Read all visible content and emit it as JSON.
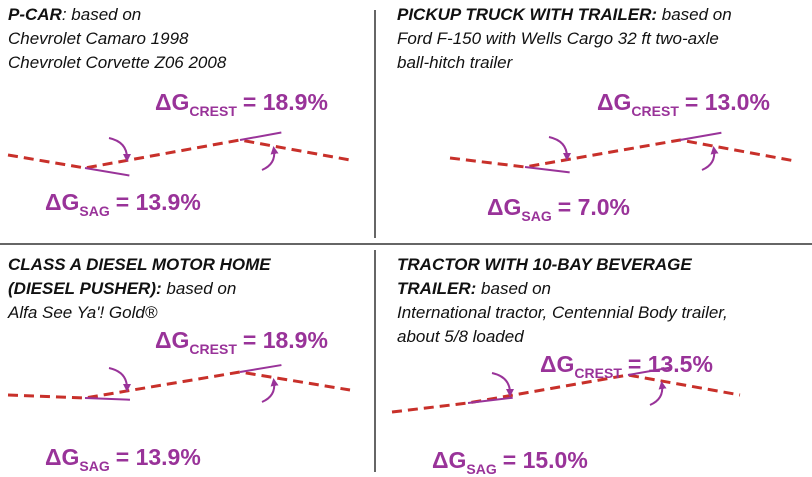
{
  "panels": [
    {
      "title": [
        "P-CAR"
      ],
      "title_suffix": ": based on",
      "lines": [
        "Chevrolet Camaro 1998",
        "Chevrolet Corvette Z06 2008"
      ],
      "crest": {
        "symbol": "ΔG",
        "subscript": "CREST",
        "value": "= 18.9%"
      },
      "sag": {
        "symbol": "ΔG",
        "subscript": "SAG",
        "value": "= 13.9%"
      }
    },
    {
      "title": [
        "PICKUP TRUCK WITH TRAILER:"
      ],
      "title_suffix": " based on",
      "lines": [
        "Ford F-150 with Wells Cargo 32 ft two-axle",
        "ball-hitch trailer"
      ],
      "crest": {
        "symbol": "ΔG",
        "subscript": "CREST",
        "value": "= 13.0%"
      },
      "sag": {
        "symbol": "ΔG",
        "subscript": "SAG",
        "value": "= 7.0%"
      }
    },
    {
      "title": [
        "CLASS A DIESEL MOTOR HOME",
        "(DIESEL PUSHER):"
      ],
      "title_suffix": " based on",
      "lines": [
        "Alfa See Ya'! Gold®"
      ],
      "crest": {
        "symbol": "ΔG",
        "subscript": "CREST",
        "value": "= 18.9%"
      },
      "sag": {
        "symbol": "ΔG",
        "subscript": "SAG",
        "value": "= 13.9%"
      }
    },
    {
      "title": [
        "TRACTOR WITH 10-BAY BEVERAGE",
        "TRAILER:"
      ],
      "title_suffix": " based on",
      "lines": [
        "International tractor, Centennial Body trailer,",
        "about 5/8 loaded"
      ],
      "crest": {
        "symbol": "ΔG",
        "subscript": "CREST",
        "value": "= 13.5%"
      },
      "sag": {
        "symbol": "ΔG",
        "subscript": "SAG",
        "value": "= 15.0%"
      }
    }
  ]
}
